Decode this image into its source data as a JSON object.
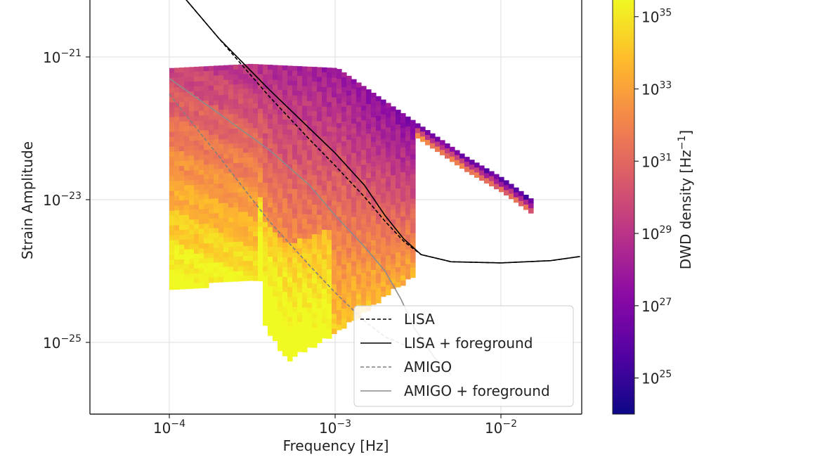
{
  "chart_data": {
    "type": "heatmap",
    "title": "",
    "xlabel": "Frequency [Hz]",
    "ylabel": "Strain Amplitude",
    "x_scale": "log",
    "y_scale": "log",
    "xlim": [
      3e-05,
      0.03
    ],
    "ylim": [
      3.2e-27,
      1e-20
    ],
    "x_ticks": [
      {
        "value": 0.0001,
        "base": "10",
        "exp": "−4"
      },
      {
        "value": 0.001,
        "base": "10",
        "exp": "−3"
      },
      {
        "value": 0.01,
        "base": "10",
        "exp": "−2"
      }
    ],
    "y_ticks": [
      {
        "value": 1e-21,
        "base": "10",
        "exp": "−21"
      },
      {
        "value": 1e-23,
        "base": "10",
        "exp": "−23"
      },
      {
        "value": 1e-25,
        "base": "10",
        "exp": "−25"
      }
    ],
    "grid": true,
    "heatmap": {
      "description_units": "DWD density per pixel, log10 Hz^-1",
      "x_range": [
        0.0001,
        0.03
      ],
      "upper_edge_points": [
        [
          0.0001,
          7e-22
        ],
        [
          0.0003,
          8e-22
        ],
        [
          0.001,
          7e-22
        ],
        [
          0.003,
          1.2e-22
        ],
        [
          0.006,
          4e-23
        ],
        [
          0.01,
          2e-23
        ],
        [
          0.015,
          1e-23
        ]
      ],
      "lower_edge_points": [
        [
          0.0001,
          6e-25
        ],
        [
          0.0003,
          8e-25
        ],
        [
          0.00035,
          8e-25
        ],
        [
          0.00036,
          2e-25
        ],
        [
          0.0005,
          6e-26
        ],
        [
          0.001,
          1.5e-25
        ],
        [
          0.002,
          5e-25
        ],
        [
          0.003,
          1e-24
        ]
      ]
    },
    "series": [
      {
        "name": "LISA",
        "style": "dashed",
        "color": "#000000",
        "x": [
          0.0001,
          0.0002,
          0.0004,
          0.0007,
          0.001,
          0.0015,
          0.002,
          0.0026,
          0.0033,
          0.005,
          0.01,
          0.02,
          0.03
        ],
        "y": [
          1.2e-20,
          1.8e-21,
          2.8e-22,
          7e-23,
          3e-23,
          1.1e-23,
          5e-24,
          2.6e-24,
          1.7e-24,
          1.35e-24,
          1.3e-24,
          1.4e-24,
          1.6e-24
        ]
      },
      {
        "name": "LISA + foreground",
        "style": "solid",
        "color": "#000000",
        "x": [
          0.0001,
          0.0002,
          0.0004,
          0.0007,
          0.001,
          0.0015,
          0.002,
          0.0026,
          0.0033,
          0.005,
          0.01,
          0.02,
          0.03
        ],
        "y": [
          1.2e-20,
          1.8e-21,
          3.5e-22,
          1e-22,
          4.5e-23,
          1.6e-23,
          6e-24,
          2.8e-24,
          1.7e-24,
          1.35e-24,
          1.3e-24,
          1.4e-24,
          1.6e-24
        ]
      },
      {
        "name": "AMIGO",
        "style": "dashed",
        "color": "#7f7f7f",
        "x": [
          0.0001,
          0.0002,
          0.0004,
          0.0007,
          0.001,
          0.0015,
          0.002,
          0.003
        ],
        "y": [
          3e-22,
          4e-23,
          5e-24,
          1.2e-24,
          5e-25,
          2e-25,
          1.2e-25,
          8e-26
        ]
      },
      {
        "name": "AMIGO + foreground",
        "style": "solid",
        "color": "#8c8c8c",
        "x": [
          0.0001,
          0.0002,
          0.0004,
          0.0007,
          0.001,
          0.0015,
          0.002,
          0.0025,
          0.003,
          0.004,
          0.005
        ],
        "y": [
          5e-22,
          1.6e-22,
          5e-23,
          1.6e-23,
          6e-24,
          2.2e-24,
          1e-24,
          4e-25,
          1.6e-25,
          6e-26,
          3.5e-26
        ]
      }
    ],
    "legend": {
      "placement": "lower-right",
      "entries": [
        {
          "label": "LISA",
          "style": "dashed",
          "color": "#000000"
        },
        {
          "label": "LISA + foreground",
          "style": "solid",
          "color": "#000000"
        },
        {
          "label": "AMIGO",
          "style": "dashed",
          "color": "#7f7f7f"
        },
        {
          "label": "AMIGO + foreground",
          "style": "solid",
          "color": "#8c8c8c"
        }
      ]
    },
    "colorbar": {
      "label": "DWD density [Hz⁻¹]",
      "label_base": "DWD density [Hz",
      "label_exp": "−1",
      "label_close": "]",
      "scale": "log",
      "range_log10": [
        24,
        35.5
      ],
      "ticks": [
        {
          "value_log10": 25,
          "base": "10",
          "exp": "25"
        },
        {
          "value_log10": 27,
          "base": "10",
          "exp": "27"
        },
        {
          "value_log10": 29,
          "base": "10",
          "exp": "29"
        },
        {
          "value_log10": 31,
          "base": "10",
          "exp": "31"
        },
        {
          "value_log10": 33,
          "base": "10",
          "exp": "33"
        },
        {
          "value_log10": 35,
          "base": "10",
          "exp": "35"
        }
      ],
      "colormap": "plasma",
      "colormap_stops": [
        "#0d0887",
        "#5302a3",
        "#8b0aa5",
        "#b83289",
        "#db5c68",
        "#f48849",
        "#febd2a",
        "#f0f921"
      ]
    }
  }
}
